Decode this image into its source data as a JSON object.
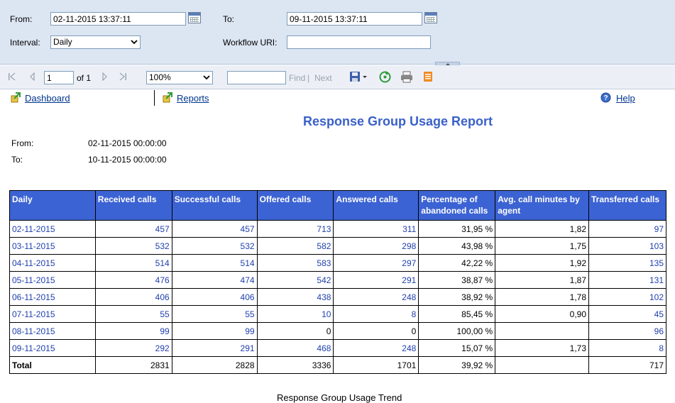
{
  "params": {
    "from_label": "From:",
    "from_value": "02-11-2015 13:37:11",
    "to_label": "To:",
    "to_value": "09-11-2015 13:37:11",
    "interval_label": "Interval:",
    "interval_value": "Daily",
    "workflow_label": "Workflow URI:",
    "workflow_value": ""
  },
  "toolbar": {
    "page_value": "1",
    "of_text": "of 1",
    "zoom_value": "100%",
    "find_label": "Find",
    "separator": "|",
    "next_label": "Next"
  },
  "nav": {
    "dashboard": "Dashboard",
    "reports": "Reports",
    "help": "Help"
  },
  "report": {
    "title": "Response Group Usage Report",
    "from_label": "From:",
    "from_value": "02-11-2015 00:00:00",
    "to_label": "To:",
    "to_value": "10-11-2015 00:00:00",
    "trend_title": "Response Group Usage Trend"
  },
  "table": {
    "headers": {
      "h0": "Daily",
      "h1": "Received calls",
      "h2": "Successful calls",
      "h3": "Offered calls",
      "h4": "Answered calls",
      "h5": "Percentage of abandoned calls",
      "h6": "Avg. call minutes by agent",
      "h7": "Transferred calls"
    },
    "rows": [
      [
        "02-11-2015",
        "457",
        "457",
        "713",
        "311",
        "31,95 %",
        "1,82",
        "97"
      ],
      [
        "03-11-2015",
        "532",
        "532",
        "582",
        "298",
        "43,98 %",
        "1,75",
        "103"
      ],
      [
        "04-11-2015",
        "514",
        "514",
        "583",
        "297",
        "42,22 %",
        "1,92",
        "135"
      ],
      [
        "05-11-2015",
        "476",
        "474",
        "542",
        "291",
        "38,87 %",
        "1,87",
        "131"
      ],
      [
        "06-11-2015",
        "406",
        "406",
        "438",
        "248",
        "38,92 %",
        "1,78",
        "102"
      ],
      [
        "07-11-2015",
        "55",
        "55",
        "10",
        "8",
        "85,45 %",
        "0,90",
        "45"
      ],
      [
        "08-11-2015",
        "99",
        "99",
        "0",
        "0",
        "100,00 %",
        "",
        "96"
      ],
      [
        "09-11-2015",
        "292",
        "291",
        "468",
        "248",
        "15,07 %",
        "1,73",
        "8"
      ]
    ],
    "total": [
      "Total",
      "2831",
      "2828",
      "3336",
      "1701",
      "39,92 %",
      "",
      "717"
    ]
  }
}
